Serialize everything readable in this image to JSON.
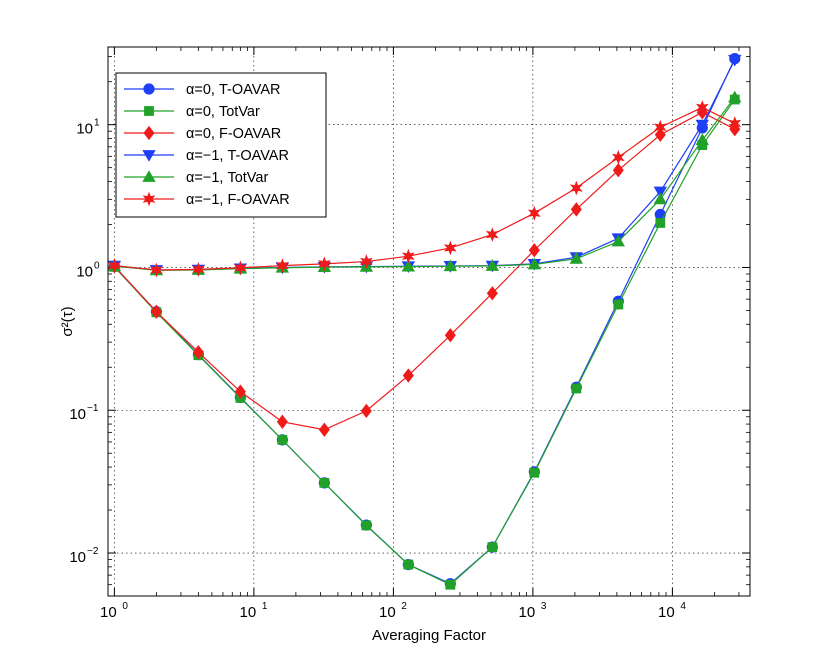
{
  "chart_data": {
    "type": "line",
    "title": "",
    "xlabel": "Averaging Factor",
    "ylabel": "σ²(τ)",
    "xscale": "log",
    "yscale": "log",
    "xlim": [
      0.9,
      36000
    ],
    "ylim": [
      0.005,
      35
    ],
    "grid": true,
    "legend_position": "top-left",
    "x_ticks": [
      {
        "value": 1,
        "base": "10",
        "exp": "0"
      },
      {
        "value": 10,
        "base": "10",
        "exp": "1"
      },
      {
        "value": 100,
        "base": "10",
        "exp": "2"
      },
      {
        "value": 1000,
        "base": "10",
        "exp": "3"
      },
      {
        "value": 10000,
        "base": "10",
        "exp": "4"
      }
    ],
    "y_ticks": [
      {
        "value": 0.01,
        "label": "10",
        "exp": "−2"
      },
      {
        "value": 0.1,
        "label": "10",
        "exp": "−1"
      },
      {
        "value": 1,
        "label": "10",
        "exp": "0"
      },
      {
        "value": 10,
        "label": "10",
        "exp": "1"
      }
    ],
    "series": [
      {
        "name": "α=0, T-OAVAR",
        "color": "#1f3ff5",
        "marker": "circle",
        "x": [
          1,
          2,
          4,
          8,
          16,
          32,
          64,
          128,
          256,
          512,
          1024,
          2048,
          4096,
          8192,
          16384,
          28000
        ],
        "y": [
          1.02,
          0.49,
          0.245,
          0.123,
          0.062,
          0.031,
          0.0157,
          0.0083,
          0.0061,
          0.011,
          0.037,
          0.145,
          0.58,
          2.35,
          9.5,
          29.0
        ]
      },
      {
        "name": "α=0, TotVar",
        "color": "#22a12a",
        "marker": "square",
        "x": [
          1,
          2,
          4,
          8,
          16,
          32,
          64,
          128,
          256,
          512,
          1024,
          2048,
          4096,
          8192,
          16384,
          28000
        ],
        "y": [
          1.01,
          0.485,
          0.243,
          0.122,
          0.062,
          0.031,
          0.0156,
          0.0083,
          0.006,
          0.011,
          0.0365,
          0.142,
          0.55,
          2.05,
          7.2,
          15.0
        ]
      },
      {
        "name": "α=0, F-OAVAR",
        "color": "#ef1b1b",
        "marker": "diamond",
        "x": [
          1,
          2,
          4,
          8,
          16,
          32,
          64,
          128,
          256,
          512,
          1024,
          2048,
          4096,
          8192,
          16384,
          28000
        ],
        "y": [
          1.02,
          0.49,
          0.255,
          0.135,
          0.083,
          0.073,
          0.099,
          0.175,
          0.335,
          0.66,
          1.32,
          2.55,
          4.8,
          8.5,
          12.2,
          9.3
        ]
      },
      {
        "name": "α=−1, T-OAVAR",
        "color": "#1f3ff5",
        "marker": "triangle-down",
        "x": [
          1,
          2,
          4,
          8,
          16,
          32,
          64,
          128,
          256,
          512,
          1024,
          2048,
          4096,
          8192,
          16384,
          28000
        ],
        "y": [
          1.03,
          0.96,
          0.965,
          0.985,
          1.0,
          1.01,
          1.015,
          1.02,
          1.025,
          1.03,
          1.06,
          1.18,
          1.6,
          3.4,
          10.0,
          28.5
        ]
      },
      {
        "name": "α=−1, TotVar",
        "color": "#22a12a",
        "marker": "triangle-up",
        "x": [
          1,
          2,
          4,
          8,
          16,
          32,
          64,
          128,
          256,
          512,
          1024,
          2048,
          4096,
          8192,
          16384,
          28000
        ],
        "y": [
          1.02,
          0.955,
          0.96,
          0.98,
          0.995,
          1.005,
          1.01,
          1.015,
          1.02,
          1.025,
          1.05,
          1.15,
          1.52,
          3.0,
          7.8,
          15.5
        ]
      },
      {
        "name": "α=−1, F-OAVAR",
        "color": "#ef1b1b",
        "marker": "star",
        "x": [
          1,
          2,
          4,
          8,
          16,
          32,
          64,
          128,
          256,
          512,
          1024,
          2048,
          4096,
          8192,
          16384,
          28000
        ],
        "y": [
          1.03,
          0.96,
          0.97,
          0.995,
          1.03,
          1.06,
          1.1,
          1.2,
          1.37,
          1.7,
          2.4,
          3.6,
          5.9,
          9.6,
          13.2,
          10.2
        ]
      }
    ]
  }
}
